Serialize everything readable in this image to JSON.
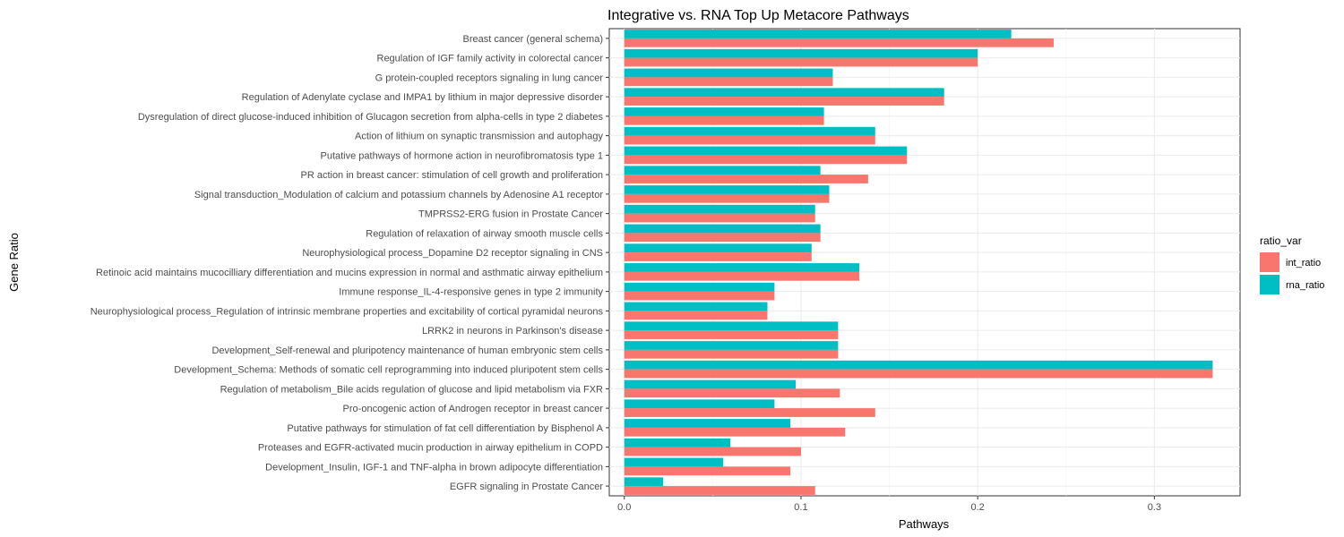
{
  "chart_data": {
    "type": "bar",
    "orientation": "horizontal",
    "title": "Integrative vs. RNA Top Up Metacore Pathways",
    "xlabel": "Pathways",
    "ylabel": "Gene Ratio",
    "xlim": [
      -0.0085,
      0.3485
    ],
    "xticks": [
      0.0,
      0.1,
      0.2,
      0.3
    ],
    "xtick_labels": [
      "0.0",
      "0.1",
      "0.2",
      "0.3"
    ],
    "grid": true,
    "legend_title": "ratio_var",
    "legend_position": "right",
    "categories": [
      "Breast cancer (general schema)",
      "Regulation of IGF family activity in colorectal cancer",
      "G protein-coupled receptors signaling in lung cancer",
      "Regulation of Adenylate cyclase and IMPA1 by lithium in major depressive disorder",
      "Dysregulation of direct glucose-induced inhibition of Glucagon secretion from alpha-cells in type 2 diabetes ",
      "Action of lithium on synaptic transmission and autophagy",
      "Putative pathways of hormone action in neurofibromatosis type 1",
      "PR action in breast cancer: stimulation of cell growth and proliferation",
      "Signal transduction_Modulation of calcium and potassium channels by Adenosine A1 receptor",
      "TMPRSS2-ERG fusion in Prostate Cancer",
      "Regulation of relaxation of airway smooth muscle cells",
      "Neurophysiological process_Dopamine D2 receptor signaling in CNS",
      "Retinoic acid maintains mucocilliary differentiation and mucins expression in normal and asthmatic airway epithelium",
      "Immune response_IL-4-responsive genes in type 2 immunity",
      "Neurophysiological process_Regulation of intrinsic membrane properties and excitability of cortical pyramidal neurons",
      "LRRK2 in neurons in Parkinson's disease",
      "Development_Self-renewal and pluripotency maintenance of human embryonic stem cells",
      "Development_Schema: Methods of somatic cell reprogramming into induced pluripotent stem cells",
      "Regulation of metabolism_Bile acids regulation of glucose and lipid metabolism via FXR",
      "Pro-oncogenic action of Androgen receptor in breast cancer",
      "Putative pathways for stimulation of fat cell differentiation by Bisphenol A",
      "Proteases and EGFR-activated mucin production in airway epithelium in COPD",
      "Development_Insulin, IGF-1 and TNF-alpha in brown adipocyte differentiation",
      "EGFR signaling in Prostate Cancer"
    ],
    "series": [
      {
        "name": "int_ratio",
        "color": "#F8766D",
        "values": [
          0.243,
          0.2,
          0.118,
          0.181,
          0.113,
          0.142,
          0.16,
          0.138,
          0.116,
          0.108,
          0.111,
          0.106,
          0.133,
          0.085,
          0.081,
          0.121,
          0.121,
          0.333,
          0.122,
          0.142,
          0.125,
          0.1,
          0.094,
          0.108
        ]
      },
      {
        "name": "rna_ratio",
        "color": "#00BFC4",
        "values": [
          0.219,
          0.2,
          0.118,
          0.181,
          0.113,
          0.142,
          0.16,
          0.111,
          0.116,
          0.108,
          0.111,
          0.106,
          0.133,
          0.085,
          0.081,
          0.121,
          0.121,
          0.333,
          0.097,
          0.085,
          0.094,
          0.06,
          0.056,
          0.022
        ]
      }
    ]
  }
}
